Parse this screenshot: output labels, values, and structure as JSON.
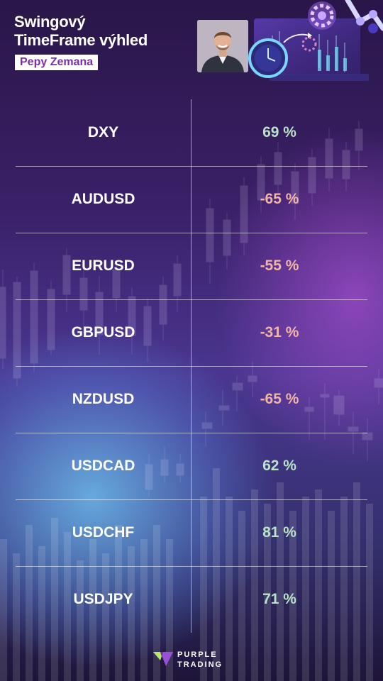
{
  "header": {
    "title_line1": "Swingový",
    "title_line2": "TimeFrame výhled",
    "subtitle": "Pepy Zemana"
  },
  "table": {
    "rows": [
      {
        "symbol": "DXY",
        "value": "69 %",
        "sentiment": "positive"
      },
      {
        "symbol": "AUDUSD",
        "value": "-65 %",
        "sentiment": "negative"
      },
      {
        "symbol": "EURUSD",
        "value": "-55 %",
        "sentiment": "negative"
      },
      {
        "symbol": "GBPUSD",
        "value": "-31 %",
        "sentiment": "negative"
      },
      {
        "symbol": "NZDUSD",
        "value": "-65 %",
        "sentiment": "negative"
      },
      {
        "symbol": "USDCAD",
        "value": "62 %",
        "sentiment": "positive"
      },
      {
        "symbol": "USDCHF",
        "value": "81 %",
        "sentiment": "positive"
      },
      {
        "symbol": "USDJPY",
        "value": "71 %",
        "sentiment": "positive"
      }
    ]
  },
  "footer": {
    "brand_line1": "PURPLE",
    "brand_line2": "TRADING",
    "logo_icon": "purple-trading-logo-icon"
  },
  "colors": {
    "positive": "#b9e3c8",
    "negative": "#f2b4a6",
    "brand_purple": "#7a2fa8"
  }
}
